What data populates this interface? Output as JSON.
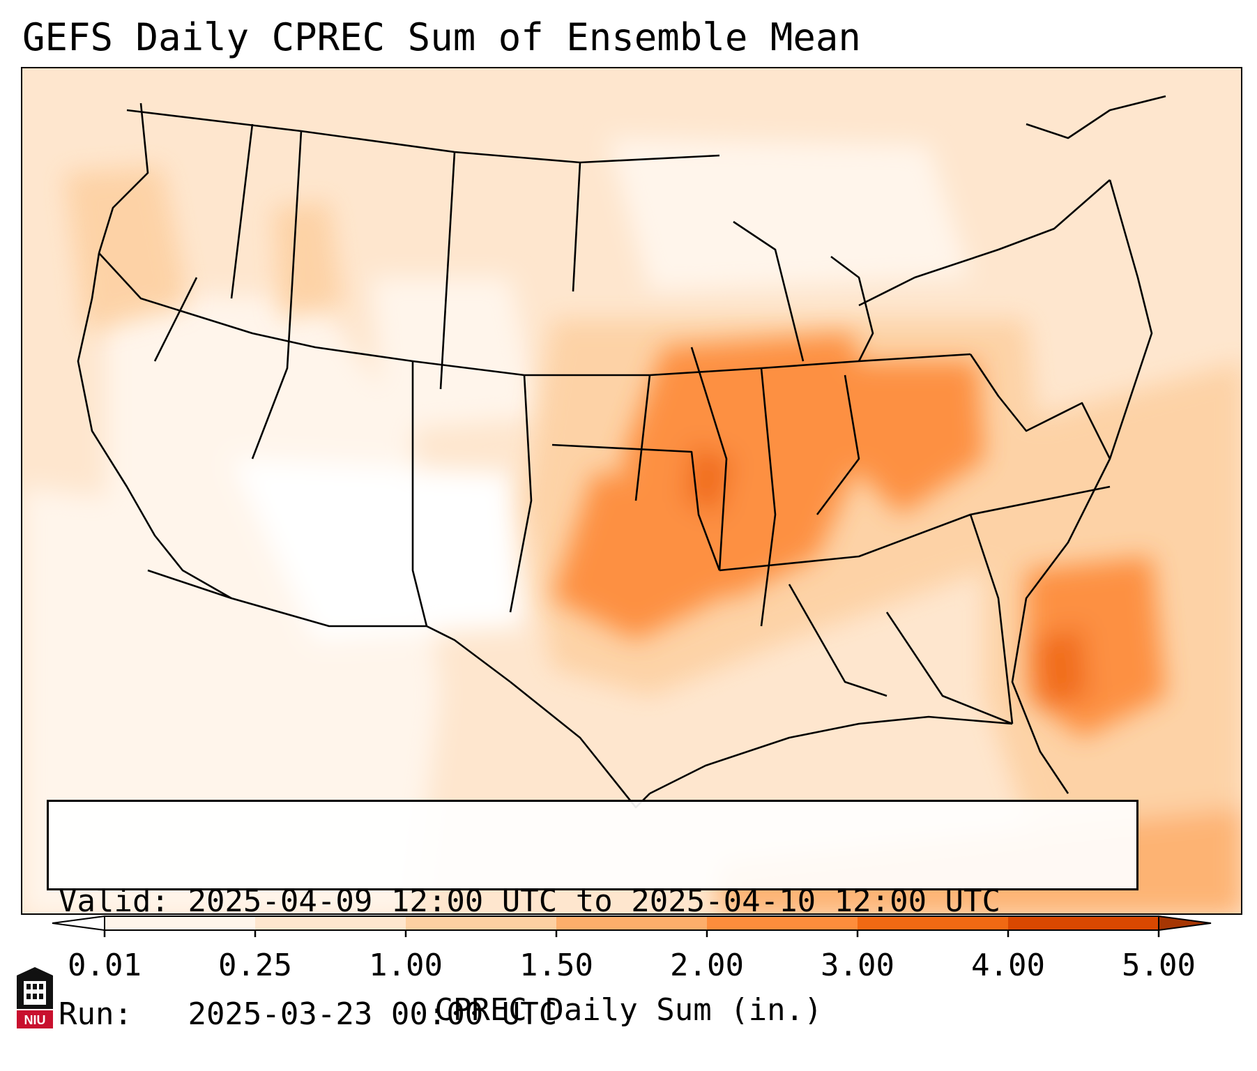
{
  "title": "GEFS Daily CPREC Sum of Ensemble Mean",
  "info": {
    "valid_label": "Valid:",
    "valid_value": "2025-04-09 12:00 UTC to 2025-04-10 12:00 UTC",
    "run_label": "Run:",
    "run_value": "2025-03-23 00:00 UTC"
  },
  "colorbar": {
    "label": "CPREC Daily Sum (in.)",
    "ticks": [
      "0.01",
      "0.25",
      "1.00",
      "1.50",
      "2.00",
      "3.00",
      "4.00",
      "5.00"
    ],
    "colors": [
      "#fff5eb",
      "#fee6ce",
      "#fdd0a2",
      "#fdae6b",
      "#fd8d3c",
      "#f16913",
      "#d94801",
      "#a63603"
    ]
  },
  "map": {
    "region": "Contiguous United States",
    "lines": [
      "state-borders",
      "coastlines",
      "country-borders"
    ]
  },
  "logo": {
    "icon": "niu-logo-icon",
    "text": "NIU"
  }
}
